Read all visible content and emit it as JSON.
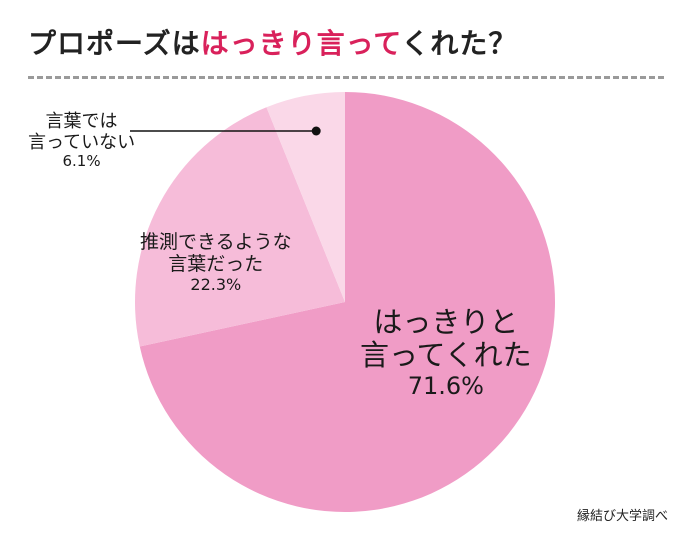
{
  "title": {
    "part1": "プロポーズは",
    "part2": "はっきり言って",
    "part3": "くれた？"
  },
  "colors": {
    "accent": "#d9215b",
    "divider": "#9a9a9a"
  },
  "chart_data": {
    "type": "pie",
    "title": "プロポーズははっきり言ってくれた？",
    "slices": [
      {
        "label_line1": "はっきりと",
        "label_line2": "言ってくれた",
        "value": 71.6,
        "value_text": "71.6%",
        "color": "#f09cc6"
      },
      {
        "label_line1": "推測できるような",
        "label_line2": "言葉だった",
        "value": 22.3,
        "value_text": "22.3%",
        "color": "#f6bcd9"
      },
      {
        "label_line1": "言葉では",
        "label_line2": "言っていない",
        "value": 6.1,
        "value_text": "6.1%",
        "color": "#fad8e8"
      }
    ],
    "start_angle": "12 o'clock",
    "direction": "clockwise"
  },
  "source": "縁結び大学調べ"
}
